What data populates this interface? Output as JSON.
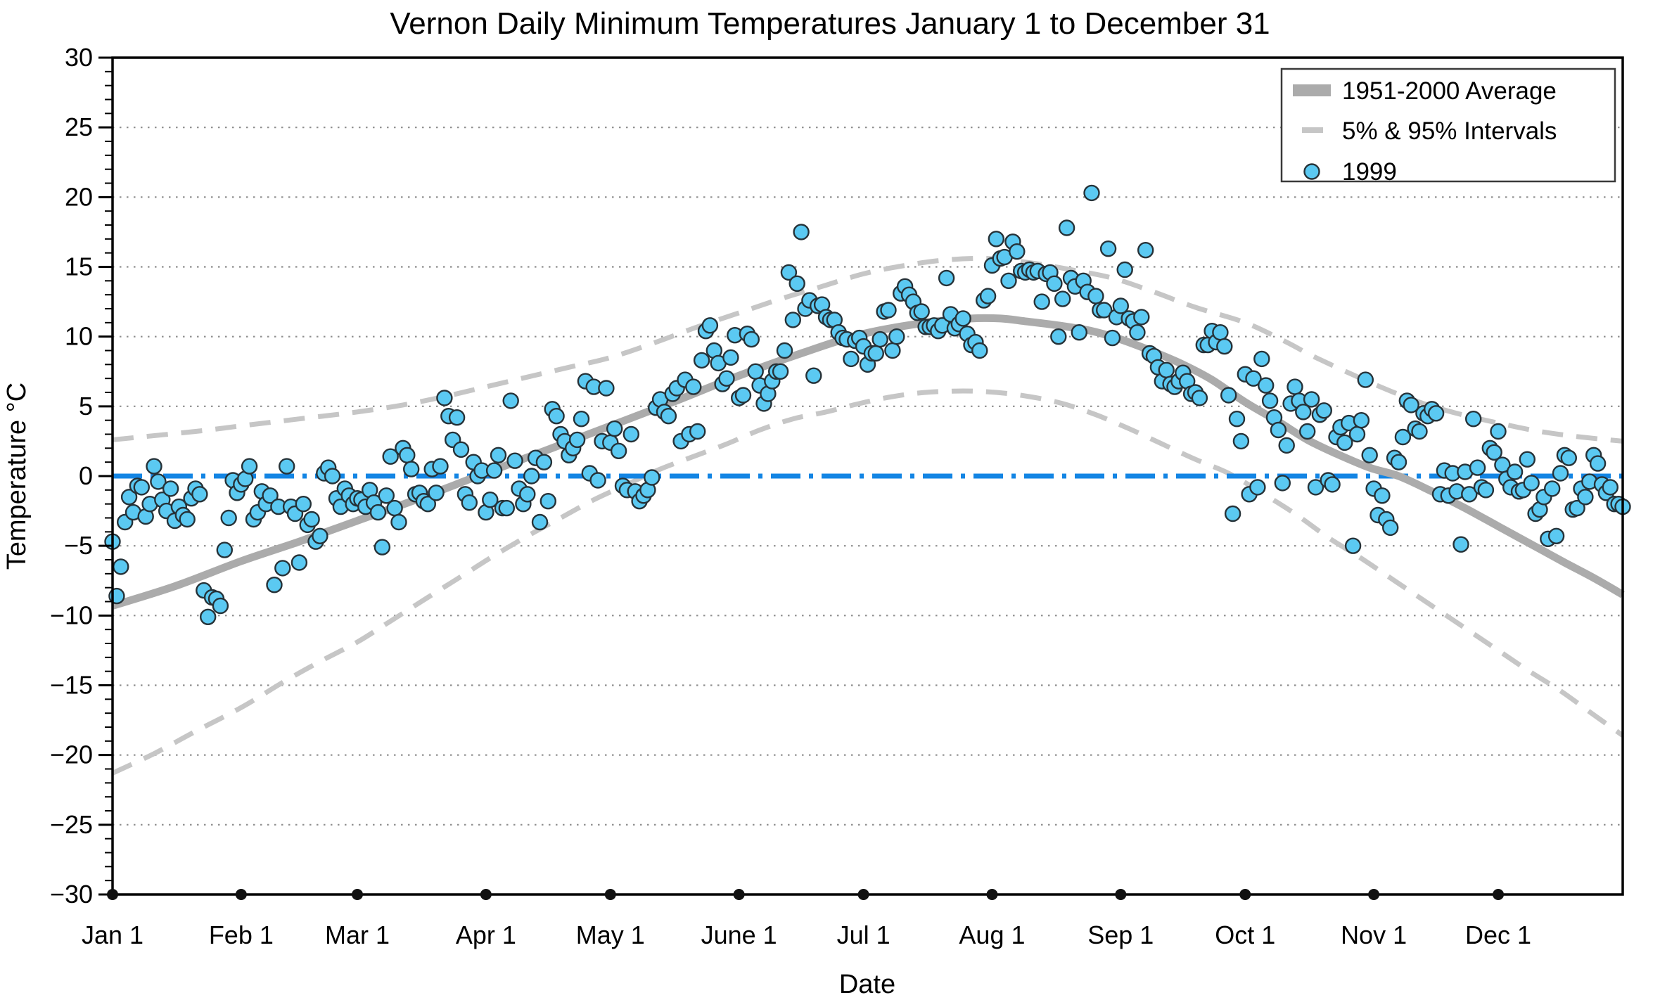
{
  "title": "Vernon Daily Minimum Temperatures January 1 to December 31",
  "axes": {
    "x_label": "Date",
    "y_label": "Temperature °C",
    "y_min": -30,
    "y_max": 30,
    "y_major_step": 5,
    "y_minor_step": 1,
    "y_tick_labels": [
      "30",
      "25",
      "20",
      "15",
      "10",
      "5",
      "0",
      "−5",
      "−10",
      "−15",
      "−20",
      "−25",
      "−30"
    ],
    "month_ticks": [
      {
        "label": "Jan 1",
        "day": 0
      },
      {
        "label": "Feb 1",
        "day": 31
      },
      {
        "label": "Mar 1",
        "day": 59
      },
      {
        "label": "Apr 1",
        "day": 90
      },
      {
        "label": "May 1",
        "day": 120
      },
      {
        "label": "June 1",
        "day": 151
      },
      {
        "label": "Jul 1",
        "day": 181
      },
      {
        "label": "Aug 1",
        "day": 212
      },
      {
        "label": "Sep 1",
        "day": 243
      },
      {
        "label": "Oct 1",
        "day": 273
      },
      {
        "label": "Nov 1",
        "day": 304
      },
      {
        "label": "Dec 1",
        "day": 334
      }
    ],
    "x_total_days": 365
  },
  "legend": {
    "items": [
      {
        "label": "1951-2000 Average",
        "swatch": "thick-gray-line"
      },
      {
        "label": "5% & 95% Intervals",
        "swatch": "gray-dash"
      },
      {
        "label": "1999",
        "swatch": "blue-dot"
      }
    ]
  },
  "colors": {
    "scatter_fill": "#5BC9F2",
    "scatter_edge": "#263238",
    "average_line": "#ABABAB",
    "interval_dash": "#C6C6C6",
    "zero_line_blue": "#1385E4",
    "gridline": "#8E8E8E",
    "frame": "#000000",
    "month_dot": "#111111"
  },
  "chart_data": {
    "type": "scatter",
    "title": "Vernon Daily Minimum Temperatures January 1 to December 31",
    "xlabel": "Date",
    "ylabel": "Temperature °C",
    "ylim": [
      -30,
      30
    ],
    "grid": "dotted horizontal every 5 °C",
    "legend_position": "top-right",
    "zero_reference_line": 0,
    "average_1951_2000_anchors": [
      [
        0,
        -9.3
      ],
      [
        15,
        -7.9
      ],
      [
        31,
        -6.1
      ],
      [
        45,
        -4.7
      ],
      [
        59,
        -3.2
      ],
      [
        74,
        -1.6
      ],
      [
        88,
        0.0
      ],
      [
        105,
        1.9
      ],
      [
        120,
        3.6
      ],
      [
        135,
        5.3
      ],
      [
        151,
        7.2
      ],
      [
        166,
        8.8
      ],
      [
        181,
        10.2
      ],
      [
        196,
        11.0
      ],
      [
        207,
        11.3
      ],
      [
        214,
        11.3
      ],
      [
        220,
        11.1
      ],
      [
        228,
        10.8
      ],
      [
        236,
        10.4
      ],
      [
        243,
        9.8
      ],
      [
        251,
        8.9
      ],
      [
        258,
        8.0
      ],
      [
        265,
        6.9
      ],
      [
        273,
        5.3
      ],
      [
        281,
        3.9
      ],
      [
        288,
        2.6
      ],
      [
        295,
        1.6
      ],
      [
        303,
        0.6
      ],
      [
        310,
        0.0
      ],
      [
        318,
        -1.1
      ],
      [
        326,
        -2.3
      ],
      [
        334,
        -3.6
      ],
      [
        342,
        -4.9
      ],
      [
        350,
        -6.2
      ],
      [
        357,
        -7.3
      ],
      [
        364,
        -8.5
      ]
    ],
    "interval_95_anchors": [
      [
        0,
        2.6
      ],
      [
        20,
        3.2
      ],
      [
        31,
        3.6
      ],
      [
        45,
        4.1
      ],
      [
        59,
        4.6
      ],
      [
        70,
        5.1
      ],
      [
        80,
        5.7
      ],
      [
        90,
        6.4
      ],
      [
        100,
        7.1
      ],
      [
        110,
        7.8
      ],
      [
        120,
        8.5
      ],
      [
        131,
        9.6
      ],
      [
        141,
        10.7
      ],
      [
        151,
        11.7
      ],
      [
        161,
        12.7
      ],
      [
        171,
        13.6
      ],
      [
        181,
        14.5
      ],
      [
        191,
        15.1
      ],
      [
        201,
        15.5
      ],
      [
        211,
        15.6
      ],
      [
        221,
        15.3
      ],
      [
        231,
        14.8
      ],
      [
        241,
        14.2
      ],
      [
        251,
        13.2
      ],
      [
        261,
        12.1
      ],
      [
        273,
        11.0
      ],
      [
        283,
        9.6
      ],
      [
        290,
        8.5
      ],
      [
        304,
        6.6
      ],
      [
        315,
        5.3
      ],
      [
        324,
        4.5
      ],
      [
        334,
        3.8
      ],
      [
        344,
        3.2
      ],
      [
        354,
        2.8
      ],
      [
        364,
        2.5
      ]
    ],
    "interval_5_anchors": [
      [
        0,
        -21.3
      ],
      [
        10,
        -19.9
      ],
      [
        20,
        -18.3
      ],
      [
        31,
        -16.6
      ],
      [
        41,
        -14.8
      ],
      [
        50,
        -13.3
      ],
      [
        59,
        -11.9
      ],
      [
        67,
        -10.4
      ],
      [
        76,
        -8.7
      ],
      [
        84,
        -7.2
      ],
      [
        92,
        -5.7
      ],
      [
        100,
        -4.3
      ],
      [
        108,
        -3.0
      ],
      [
        116,
        -1.7
      ],
      [
        124,
        -0.6
      ],
      [
        132,
        0.5
      ],
      [
        140,
        1.4
      ],
      [
        148,
        2.3
      ],
      [
        156,
        3.3
      ],
      [
        164,
        4.1
      ],
      [
        172,
        4.6
      ],
      [
        180,
        5.2
      ],
      [
        188,
        5.7
      ],
      [
        196,
        6.0
      ],
      [
        205,
        6.1
      ],
      [
        213,
        6.0
      ],
      [
        221,
        5.7
      ],
      [
        229,
        5.2
      ],
      [
        237,
        4.4
      ],
      [
        245,
        3.4
      ],
      [
        253,
        2.3
      ],
      [
        261,
        1.2
      ],
      [
        269,
        0.2
      ],
      [
        277,
        -1.2
      ],
      [
        285,
        -2.7
      ],
      [
        293,
        -4.4
      ],
      [
        301,
        -5.9
      ],
      [
        309,
        -7.5
      ],
      [
        317,
        -9.1
      ],
      [
        325,
        -10.7
      ],
      [
        333,
        -12.3
      ],
      [
        341,
        -13.9
      ],
      [
        349,
        -15.4
      ],
      [
        356,
        -16.9
      ],
      [
        364,
        -18.6
      ]
    ],
    "series_1999": {
      "name": "1999",
      "start_day": 0,
      "daily_min_temps_c": [
        -4.7,
        -8.6,
        -6.5,
        -3.3,
        -1.5,
        -2.6,
        -0.7,
        -0.8,
        -2.9,
        -2.0,
        0.7,
        -0.4,
        -1.7,
        -2.5,
        -0.9,
        -3.2,
        -2.2,
        -2.8,
        -3.1,
        -1.6,
        -0.9,
        -1.3,
        -8.2,
        -10.1,
        -8.7,
        -8.8,
        -9.3,
        -5.3,
        -3.0,
        -0.3,
        -1.2,
        -0.6,
        -0.2,
        0.7,
        -3.1,
        -2.6,
        -1.1,
        -2.0,
        -1.4,
        -7.8,
        -2.2,
        -6.6,
        0.7,
        -2.2,
        -2.7,
        -6.2,
        -2.0,
        -3.5,
        -3.1,
        -4.7,
        -4.3,
        0.2,
        0.6,
        0.0,
        -1.6,
        -2.2,
        -0.9,
        -1.4,
        -2.0,
        -1.6,
        -1.7,
        -2.2,
        -1.0,
        -1.9,
        -2.6,
        -5.1,
        -1.4,
        1.4,
        -2.3,
        -3.3,
        2.0,
        1.5,
        0.5,
        -1.3,
        -1.2,
        -1.8,
        -2.0,
        0.5,
        -1.2,
        0.7,
        5.6,
        4.3,
        2.6,
        4.2,
        1.9,
        -1.3,
        -1.9,
        1.0,
        0.0,
        0.4,
        -2.6,
        -1.7,
        0.4,
        1.5,
        -2.3,
        -2.3,
        5.4,
        1.1,
        -0.9,
        -2.0,
        -1.3,
        0.0,
        1.3,
        -3.3,
        1.0,
        -1.8,
        4.8,
        4.3,
        3.0,
        2.5,
        1.5,
        2.0,
        2.6,
        4.1,
        6.8,
        0.2,
        6.4,
        -0.3,
        2.5,
        6.3,
        2.4,
        3.4,
        1.8,
        -0.7,
        -1.0,
        3.0,
        -1.1,
        -1.8,
        -1.4,
        -1.0,
        -0.1,
        4.9,
        5.5,
        4.6,
        4.3,
        5.9,
        6.3,
        2.5,
        6.9,
        3.0,
        6.4,
        3.2,
        8.3,
        10.4,
        10.8,
        9.0,
        8.1,
        6.6,
        7.0,
        8.5,
        10.1,
        5.6,
        5.8,
        10.2,
        9.8,
        7.5,
        6.5,
        5.2,
        5.9,
        6.8,
        7.5,
        7.5,
        9.0,
        14.6,
        11.2,
        13.8,
        17.5,
        12.0,
        12.6,
        7.2,
        12.2,
        12.3,
        11.4,
        11.2,
        11.2,
        10.3,
        9.9,
        9.8,
        8.4,
        9.7,
        9.9,
        9.3,
        8.0,
        8.8,
        8.8,
        9.8,
        11.8,
        11.9,
        9.0,
        10.0,
        13.1,
        13.6,
        13.0,
        12.5,
        11.7,
        11.8,
        10.7,
        10.7,
        10.8,
        10.4,
        10.8,
        14.2,
        11.6,
        10.6,
        10.9,
        11.3,
        10.2,
        9.4,
        9.6,
        9.0,
        12.6,
        12.9,
        15.1,
        17.0,
        15.6,
        15.7,
        14.0,
        16.8,
        16.1,
        14.7,
        14.6,
        14.8,
        14.6,
        14.7,
        12.5,
        14.5,
        14.6,
        13.8,
        10.0,
        12.7,
        17.8,
        14.2,
        13.6,
        10.3,
        14.0,
        13.2,
        20.3,
        12.9,
        11.9,
        11.9,
        16.3,
        9.9,
        11.4,
        12.2,
        14.8,
        11.3,
        11.1,
        10.3,
        11.4,
        16.2,
        8.8,
        8.6,
        7.8,
        6.8,
        7.6,
        6.6,
        6.4,
        6.8,
        7.4,
        6.8,
        5.9,
        6.0,
        5.6,
        9.4,
        9.4,
        10.4,
        9.6,
        10.3,
        9.3,
        5.8,
        -2.7,
        4.1,
        2.5,
        7.3,
        -1.3,
        7.0,
        -0.8,
        8.4,
        6.5,
        5.4,
        4.2,
        3.3,
        -0.5,
        2.2,
        5.2,
        6.4,
        5.4,
        4.6,
        3.2,
        5.5,
        -0.8,
        4.4,
        4.7,
        -0.3,
        -0.6,
        2.8,
        3.5,
        2.4,
        3.8,
        -5.0,
        3.0,
        4.0,
        6.9,
        1.5,
        -0.9,
        -2.8,
        -1.4,
        -3.1,
        -3.7,
        1.3,
        1.0,
        2.8,
        5.4,
        5.1,
        3.4,
        3.2,
        4.5,
        4.3,
        4.8,
        4.5,
        -1.3,
        0.4,
        -1.4,
        0.2,
        -1.1,
        -4.9,
        0.3,
        -1.3,
        4.1,
        0.6,
        -0.8,
        -1.0,
        2.0,
        1.7,
        3.2,
        0.8,
        -0.2,
        -0.8,
        0.3,
        -1.1,
        -1.0,
        1.2,
        -0.5,
        -2.7,
        -2.4,
        -1.5,
        -4.5,
        -0.9,
        -4.3,
        0.2,
        1.5,
        1.3,
        -2.4,
        -2.3,
        -0.9,
        -1.5,
        -0.4,
        1.5,
        0.9,
        -0.6,
        -1.2,
        -0.8,
        -2.0,
        -2.0,
        -2.2
      ]
    }
  }
}
